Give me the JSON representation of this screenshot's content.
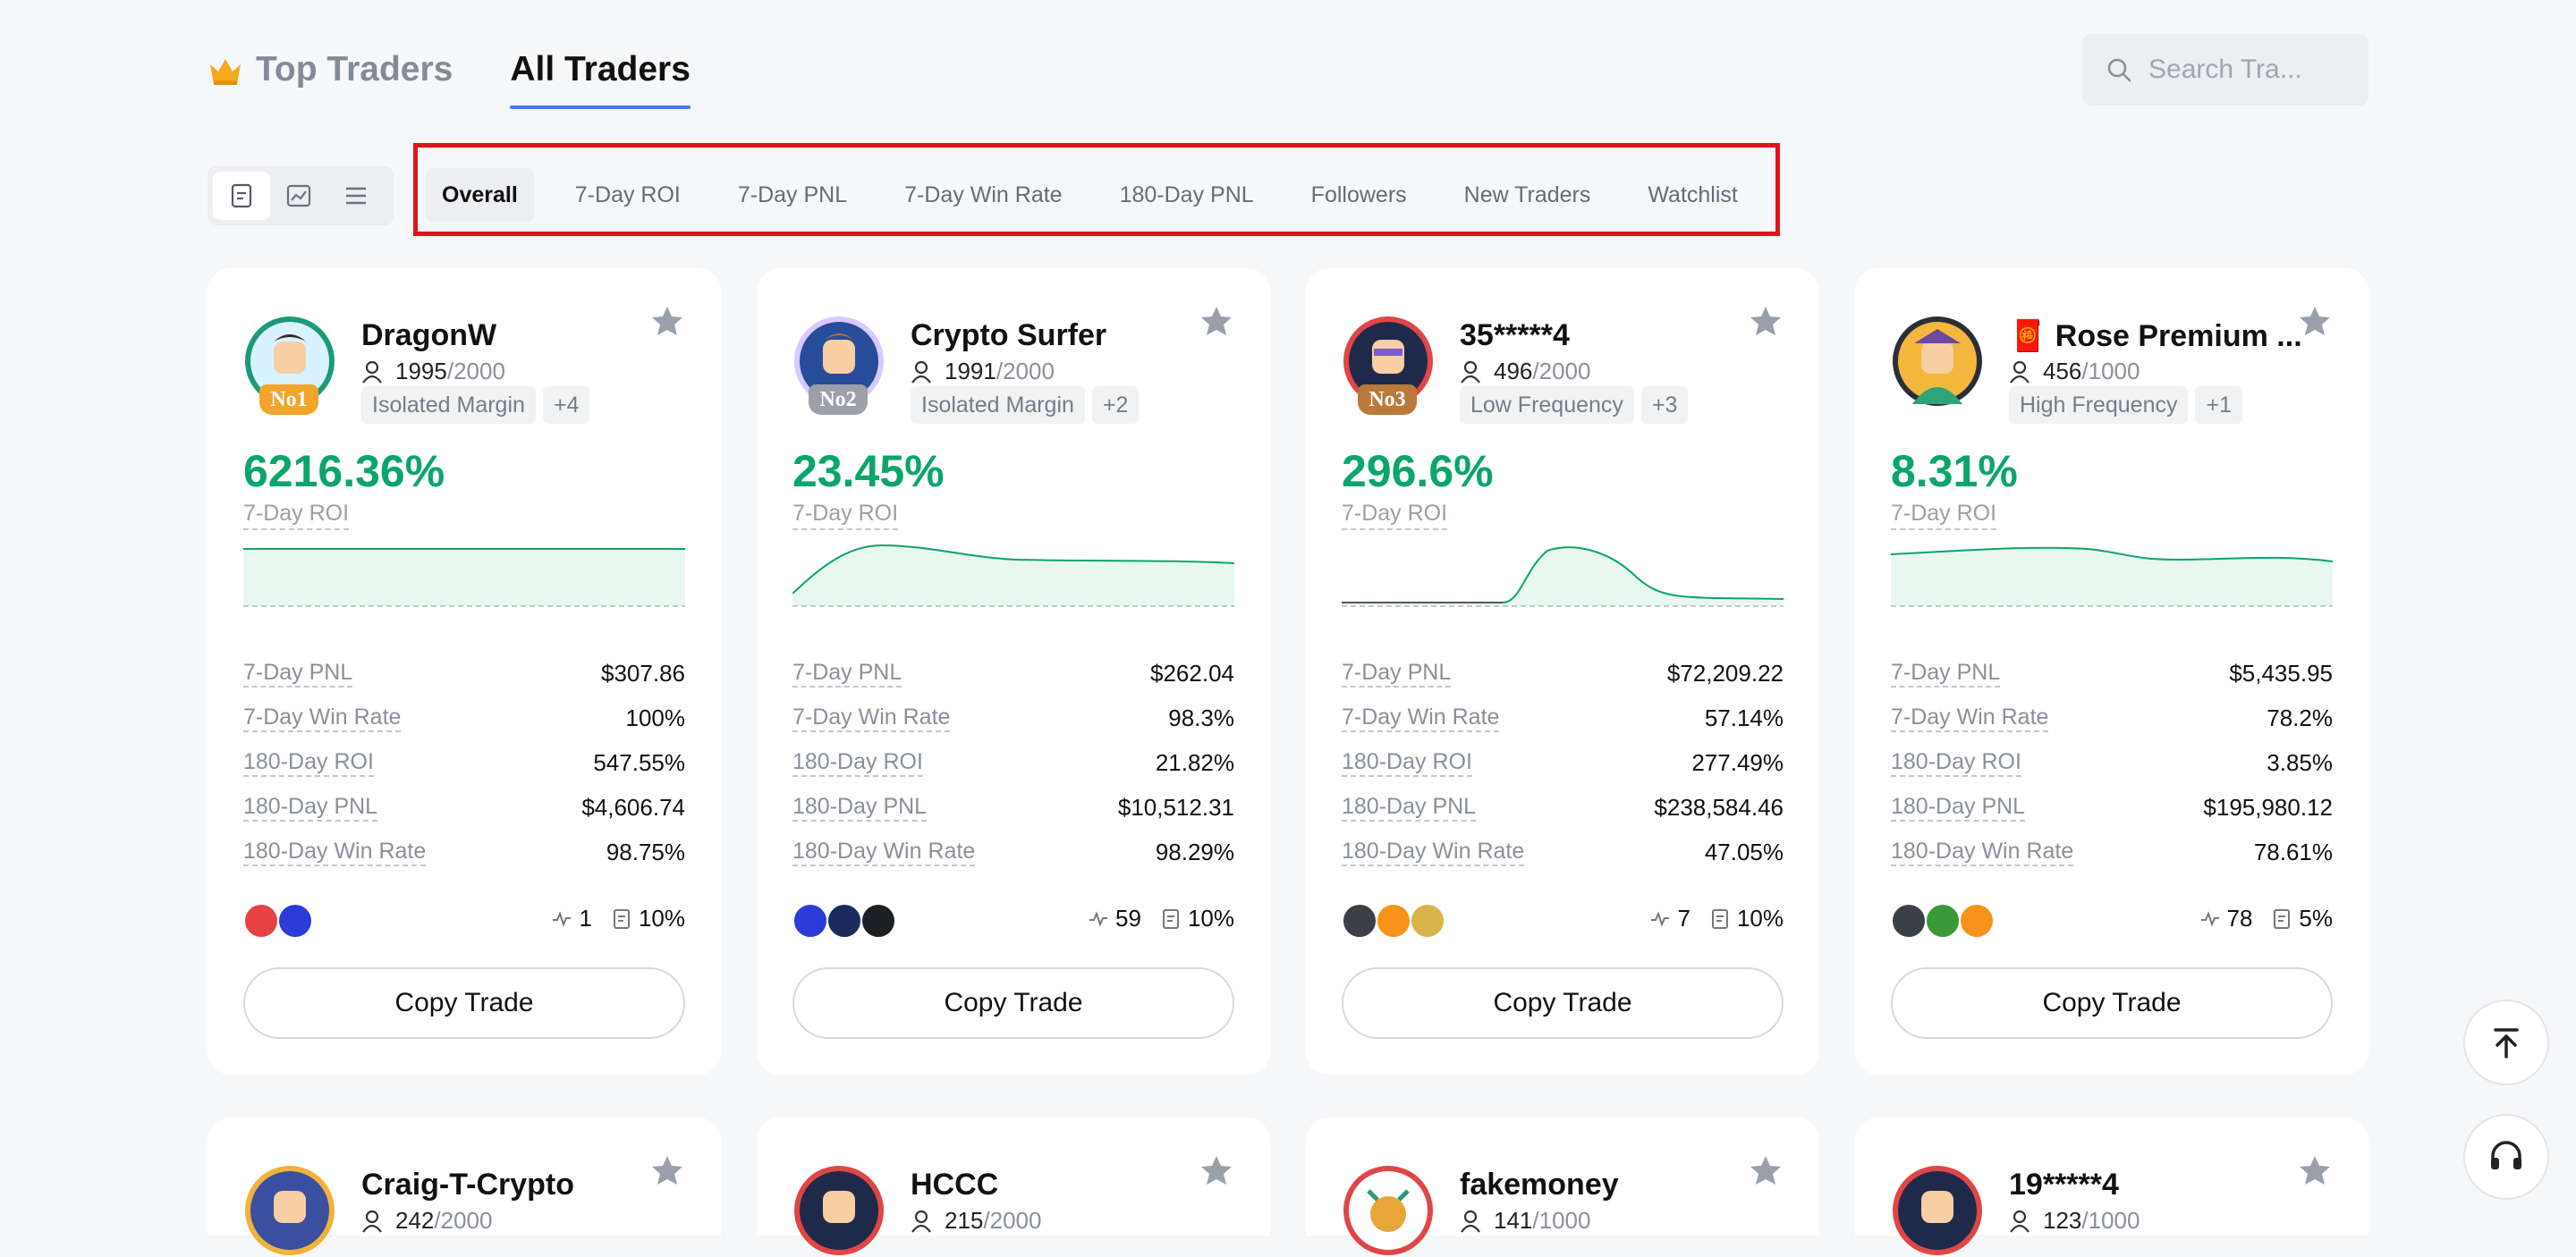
{
  "header": {
    "top_traders_label": "Top Traders",
    "all_traders_label": "All Traders",
    "search_placeholder": "Search Tra..."
  },
  "view_toggle": [
    "card-view-icon",
    "chart-view-icon",
    "list-view-icon"
  ],
  "filter_tabs": [
    "Overall",
    "7-Day ROI",
    "7-Day PNL",
    "7-Day Win Rate",
    "180-Day PNL",
    "Followers",
    "New Traders",
    "Watchlist"
  ],
  "stat_labels": [
    "7-Day PNL",
    "7-Day Win Rate",
    "180-Day ROI",
    "180-Day PNL",
    "180-Day Win Rate"
  ],
  "roi_label": "7-Day ROI",
  "copy_label": "Copy Trade",
  "colors": {
    "positive": "#0aa56a",
    "accent": "#3d7cf6",
    "highlight_box": "#e3131b"
  },
  "cards": [
    {
      "name": "DragonW",
      "followers": "1995",
      "max_followers": "/2000",
      "rank": "No1",
      "tags": [
        "Isolated Margin",
        "+4"
      ],
      "roi": "6216.36%",
      "stats": [
        "$307.86",
        "100%",
        "547.55%",
        "$4,606.74",
        "98.75%"
      ],
      "trades": "1",
      "profit_share": "10%",
      "coins": [
        "avax",
        "ena"
      ]
    },
    {
      "name": "Crypto Surfer",
      "followers": "1991",
      "max_followers": "/2000",
      "rank": "No2",
      "tags": [
        "Isolated Margin",
        "+2"
      ],
      "roi": "23.45%",
      "stats": [
        "$262.04",
        "98.3%",
        "21.82%",
        "$10,512.31",
        "98.29%"
      ],
      "trades": "59",
      "profit_share": "10%",
      "coins": [
        "ena",
        "cro",
        "x"
      ]
    },
    {
      "name": "35*****4",
      "followers": "496",
      "max_followers": "/2000",
      "rank": "No3",
      "tags": [
        "Low Frequency",
        "+3"
      ],
      "roi": "296.6%",
      "stats": [
        "$72,209.22",
        "57.14%",
        "277.49%",
        "$238,584.46",
        "47.05%"
      ],
      "trades": "7",
      "profit_share": "10%",
      "coins": [
        "eth",
        "btc",
        "doge"
      ]
    },
    {
      "name": "🧧 Rose Premium ...",
      "followers": "456",
      "max_followers": "/1000",
      "rank": "",
      "tags": [
        "High Frequency",
        "+1"
      ],
      "roi": "8.31%",
      "stats": [
        "$5,435.95",
        "78.2%",
        "3.85%",
        "$195,980.12",
        "78.61%"
      ],
      "trades": "78",
      "profit_share": "5%",
      "coins": [
        "eth",
        "pepe",
        "btc"
      ]
    },
    {
      "name": "Craig-T-Crypto",
      "followers": "242",
      "max_followers": "/2000"
    },
    {
      "name": "HCCC",
      "followers": "215",
      "max_followers": "/2000"
    },
    {
      "name": "fakemoney",
      "followers": "141",
      "max_followers": "/1000"
    },
    {
      "name": "19*****4",
      "followers": "123",
      "max_followers": "/1000"
    }
  ]
}
